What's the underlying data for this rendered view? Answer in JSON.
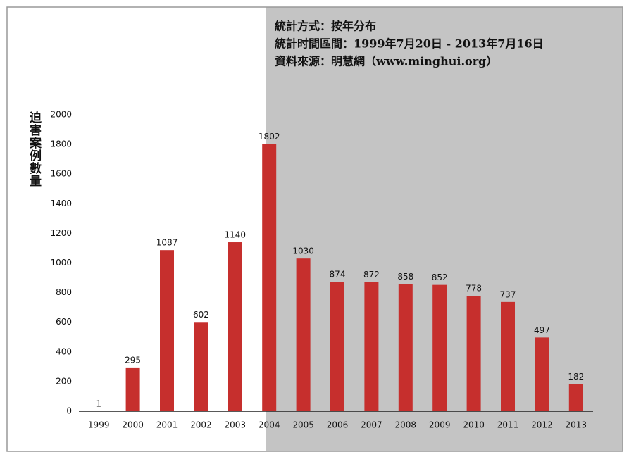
{
  "chart_data": {
    "type": "bar",
    "title_lines": [
      "統計方式：按年分布",
      "統計时間區間：1999年7月20日 - 2013年7月16日",
      "資料來源：明慧網（www.minghui.org）"
    ],
    "ylabel": "迫害案例數量",
    "categories": [
      "1999",
      "2000",
      "2001",
      "2002",
      "2003",
      "2004",
      "2005",
      "2006",
      "2007",
      "2008",
      "2009",
      "2010",
      "2011",
      "2012",
      "2013"
    ],
    "values": [
      1,
      295,
      1087,
      602,
      1140,
      1802,
      1030,
      874,
      872,
      858,
      852,
      778,
      737,
      497,
      182
    ],
    "color": "#c62f2d",
    "ylim": [
      0,
      2000
    ],
    "yticks": [
      0,
      200,
      400,
      600,
      800,
      1000,
      1200,
      1400,
      1600,
      1800,
      2000
    ]
  }
}
